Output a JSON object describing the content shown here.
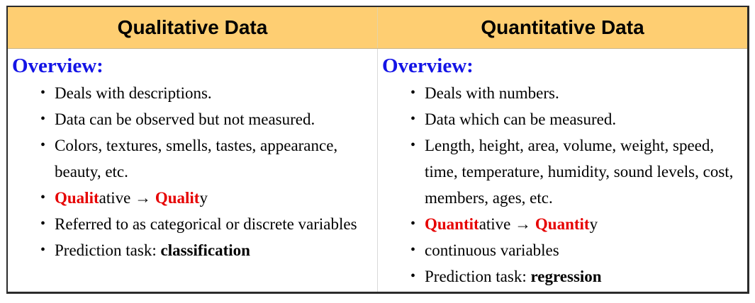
{
  "headers": {
    "qualitative": "Qualitative Data",
    "quantitative": "Quantitative Data"
  },
  "qualitative": {
    "overview_label": "Overview:",
    "items": {
      "0": "Deals with descriptions.",
      "1": "Data can be observed but not measured.",
      "2": "Colors, textures, smells, tastes, appearance, beauty, etc.",
      "3": {
        "a": "Qualit",
        "b": "ative → ",
        "c": "Qualit",
        "d": "y"
      },
      "4": "Referred to as categorical or discrete variables",
      "5": {
        "prefix": "Prediction task: ",
        "bold": "classification"
      }
    }
  },
  "quantitative": {
    "overview_label": "Overview:",
    "items": {
      "0": "Deals with numbers.",
      "1": "Data which can be measured.",
      "2": "Length, height, area, volume, weight, speed, time, temperature, humidity, sound levels, cost, members, ages, etc.",
      "3": {
        "a": "Quantit",
        "b": "ative → ",
        "c": "Quantit",
        "d": "y"
      },
      "4": "continuous variables",
      "5": {
        "prefix": "Prediction task: ",
        "bold": "regression"
      }
    }
  },
  "colors": {
    "header_background": "#fece72",
    "overview_text": "#1414e6",
    "highlight_text": "#e60000",
    "border": "#2b2b2b"
  }
}
